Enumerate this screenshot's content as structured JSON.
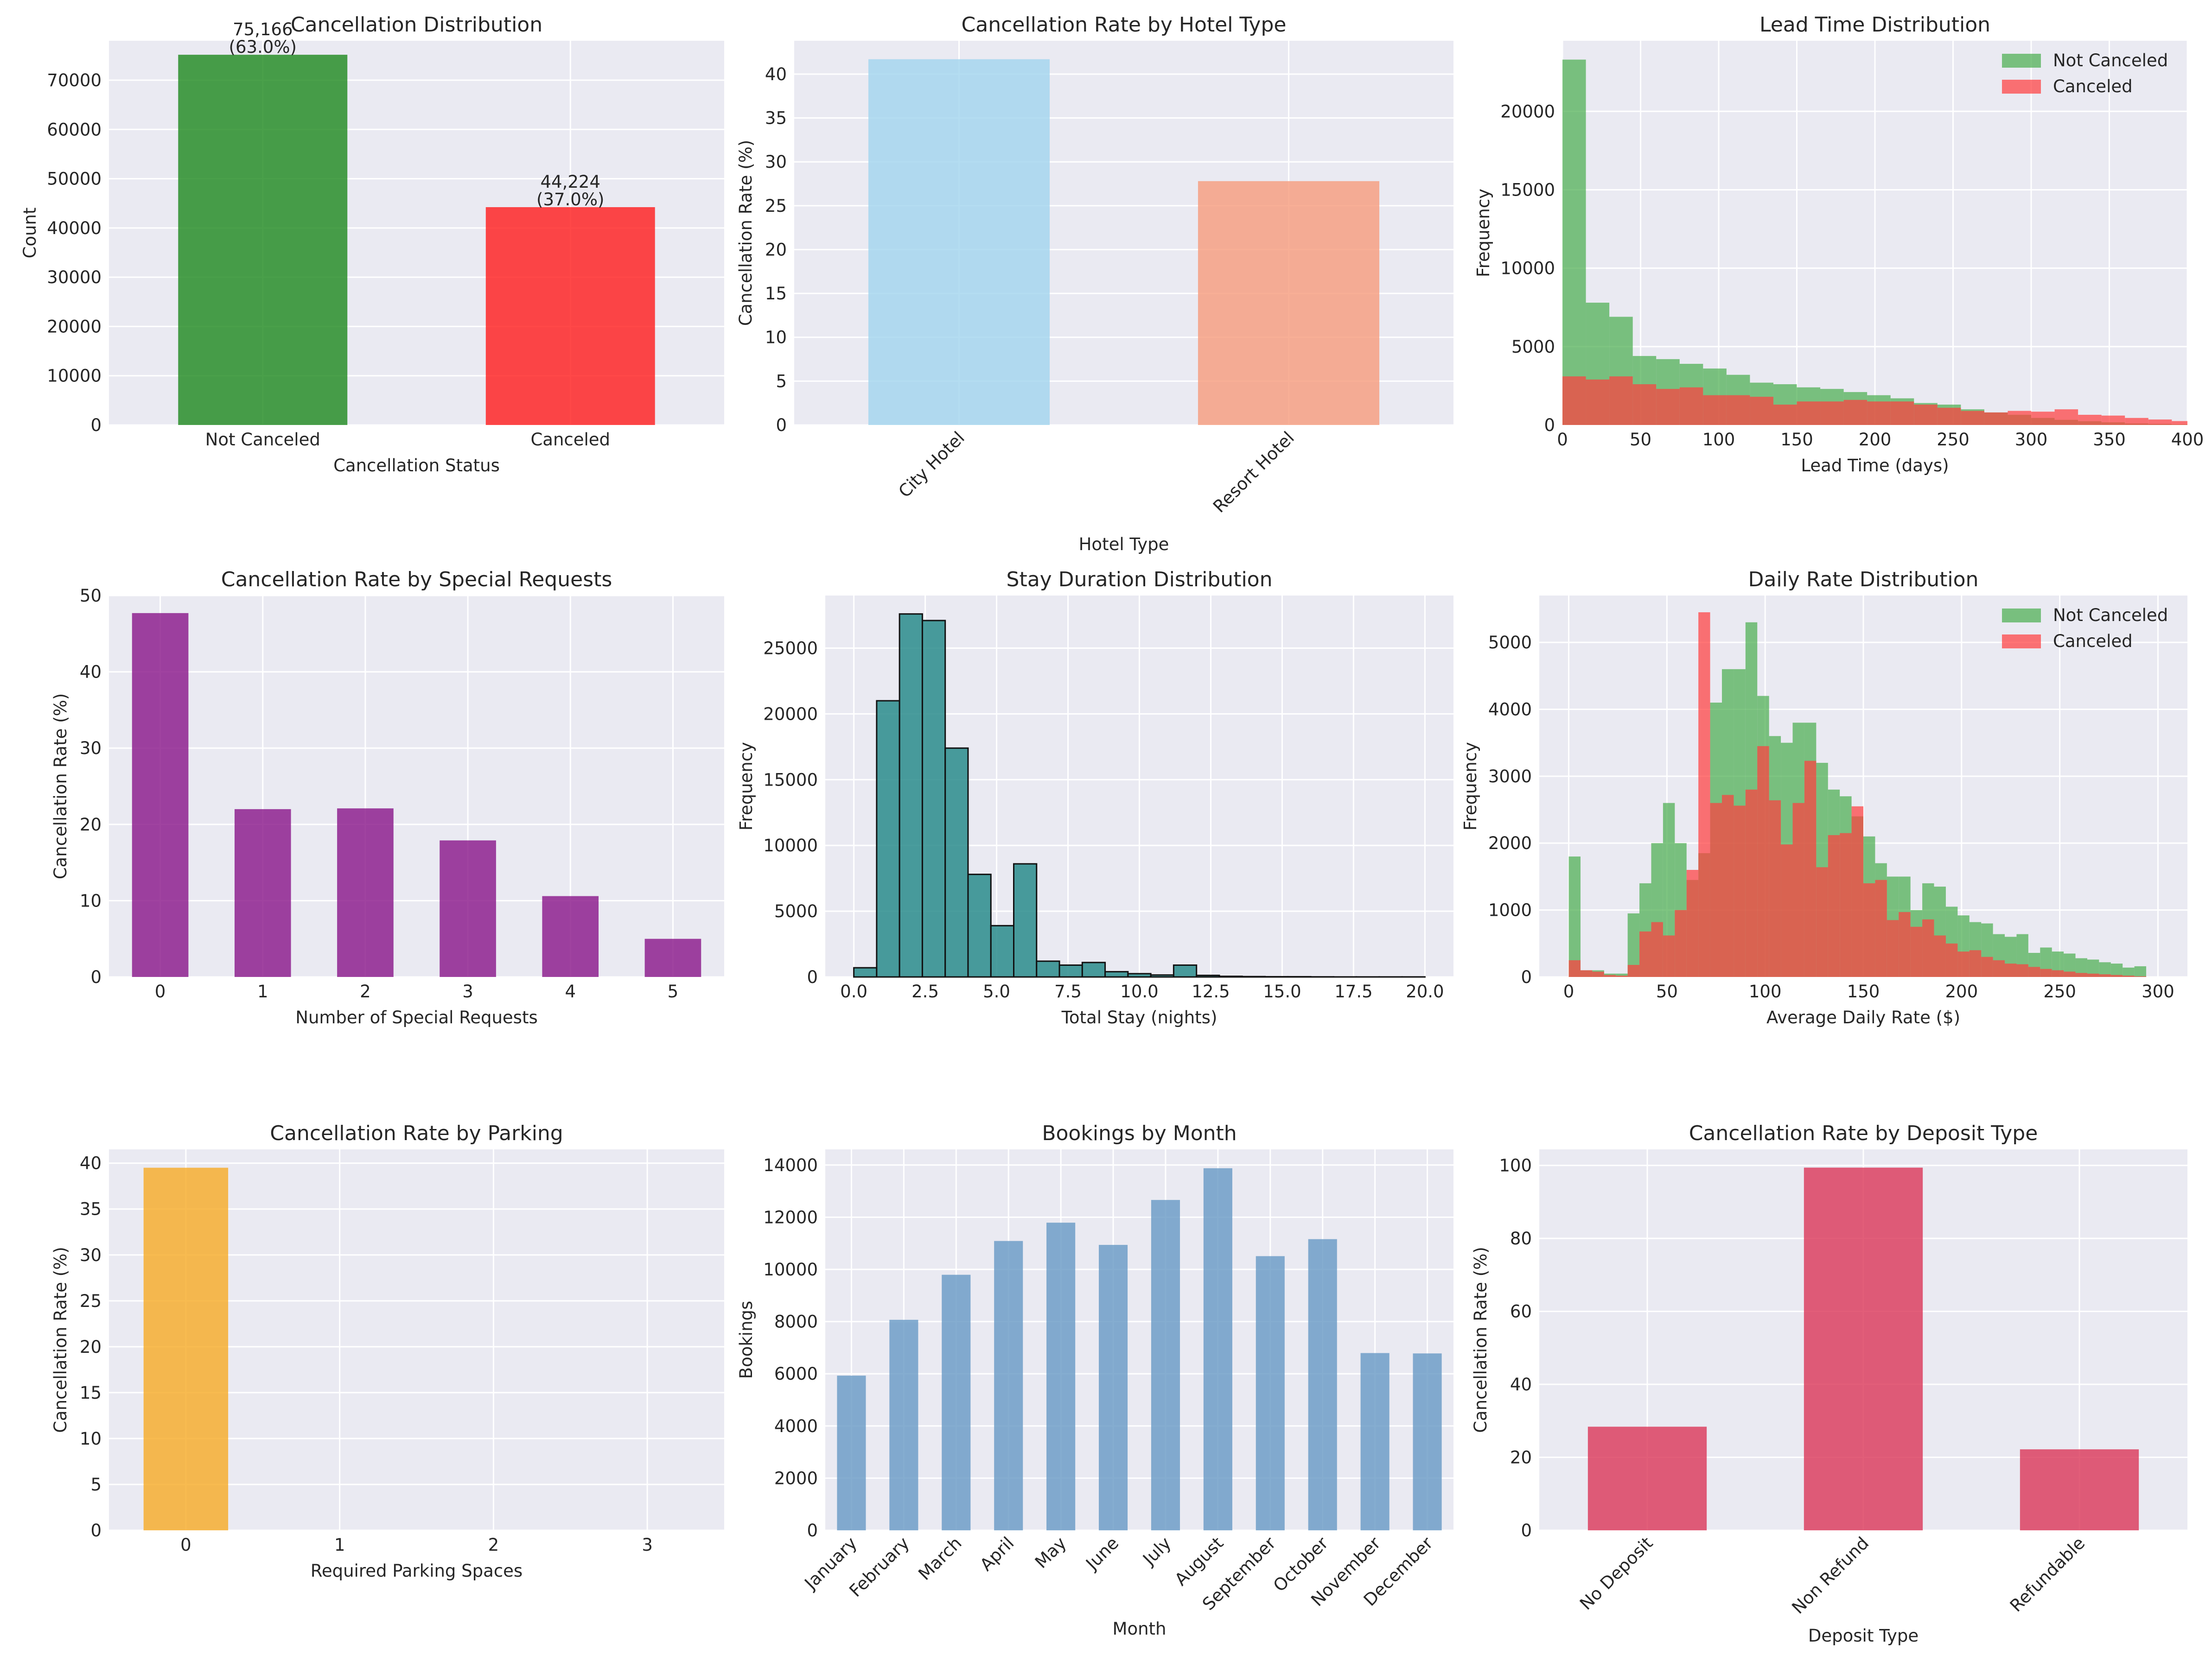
{
  "chart_data": [
    {
      "type": "bar",
      "title": "Cancellation Distribution",
      "xlabel": "Cancellation Status",
      "ylabel": "Count",
      "categories": [
        "Not Canceled",
        "Canceled"
      ],
      "values": [
        75166,
        44224
      ],
      "bar_labels": [
        [
          "75,166",
          "(63.0%)"
        ],
        [
          "44,224",
          "(37.0%)"
        ]
      ],
      "colors": [
        "#228b22",
        "#ff2020"
      ],
      "ylim": [
        0,
        78000
      ],
      "yticks": [
        0,
        10000,
        20000,
        30000,
        40000,
        50000,
        60000,
        70000
      ]
    },
    {
      "type": "bar",
      "title": "Cancellation Rate by Hotel Type",
      "xlabel": "Hotel Type",
      "ylabel": "Cancellation Rate (%)",
      "categories": [
        "City Hotel",
        "Resort Hotel"
      ],
      "values": [
        41.7,
        27.8
      ],
      "colors": [
        "#a3d5ee",
        "#f79d7f"
      ],
      "ylim": [
        0,
        43.8
      ],
      "yticks": [
        0,
        5,
        10,
        15,
        20,
        25,
        30,
        35,
        40
      ],
      "xtick_rotation": 45
    },
    {
      "type": "histogram",
      "title": "Lead Time Distribution",
      "xlabel": "Lead Time (days)",
      "ylabel": "Frequency",
      "xlim": [
        0,
        400
      ],
      "ylim": [
        0,
        24500
      ],
      "xticks": [
        0,
        50,
        100,
        150,
        200,
        250,
        300,
        350,
        400
      ],
      "yticks": [
        0,
        5000,
        10000,
        15000,
        20000
      ],
      "bin_width": 15,
      "legend_position": "top-right",
      "series": [
        {
          "name": "Not Canceled",
          "color": "#4caf50",
          "values": [
            23300,
            7800,
            6900,
            4400,
            4200,
            3900,
            3600,
            3200,
            2700,
            2600,
            2400,
            2300,
            2100,
            1900,
            1700,
            1400,
            1300,
            1000,
            800,
            650,
            450,
            330,
            240,
            170,
            100,
            70,
            40
          ]
        },
        {
          "name": "Canceled",
          "color": "#ff4040",
          "values": [
            3100,
            2900,
            3100,
            2600,
            2300,
            2400,
            1900,
            1900,
            1800,
            1300,
            1500,
            1500,
            1600,
            1500,
            1500,
            1300,
            1100,
            900,
            800,
            900,
            850,
            1000,
            650,
            600,
            450,
            350,
            250
          ]
        }
      ]
    },
    {
      "type": "bar",
      "title": "Cancellation Rate by Special Requests",
      "xlabel": "Number of Special Requests",
      "ylabel": "Cancellation Rate (%)",
      "categories": [
        "0",
        "1",
        "2",
        "3",
        "4",
        "5"
      ],
      "values": [
        47.7,
        22.0,
        22.1,
        17.9,
        10.6,
        5.0
      ],
      "colors": [
        "#8b1a8b"
      ],
      "ylim": [
        0,
        50
      ],
      "yticks": [
        0,
        10,
        20,
        30,
        40,
        50
      ]
    },
    {
      "type": "histogram",
      "title": "Stay Duration Distribution",
      "xlabel": "Total Stay (nights)",
      "ylabel": "Frequency",
      "xlim": [
        -1,
        21
      ],
      "ylim": [
        0,
        29000
      ],
      "xticks": [
        0.0,
        2.5,
        5.0,
        7.5,
        10.0,
        12.5,
        15.0,
        17.5,
        20.0
      ],
      "xtick_labels": [
        "0.0",
        "2.5",
        "5.0",
        "7.5",
        "10.0",
        "12.5",
        "15.0",
        "17.5",
        "20.0"
      ],
      "yticks": [
        0,
        5000,
        10000,
        15000,
        20000,
        25000
      ],
      "bin_width": 0.8,
      "series": [
        {
          "name": "Total Stay",
          "color": "#2a8c8c",
          "values": [
            700,
            21000,
            27600,
            27100,
            17400,
            7800,
            3900,
            8600,
            1200,
            900,
            1100,
            400,
            250,
            150,
            900,
            120,
            50,
            30,
            20,
            20,
            10,
            5,
            5,
            5,
            5
          ]
        }
      ]
    },
    {
      "type": "histogram",
      "title": "Daily Rate Distribution",
      "xlabel": "Average Daily Rate ($)",
      "ylabel": "Frequency",
      "xlim": [
        -15,
        315
      ],
      "ylim": [
        0,
        5700
      ],
      "xticks": [
        0,
        50,
        100,
        150,
        200,
        250,
        300
      ],
      "yticks": [
        0,
        1000,
        2000,
        3000,
        4000,
        5000
      ],
      "bin_width": 6,
      "legend_position": "top-right",
      "series": [
        {
          "name": "Not Canceled",
          "color": "#4caf50",
          "values": [
            1800,
            100,
            100,
            50,
            50,
            950,
            1400,
            2000,
            2600,
            2000,
            1450,
            1850,
            4100,
            4600,
            4600,
            5300,
            4200,
            3600,
            3500,
            3800,
            3800,
            3200,
            2800,
            2700,
            2400,
            2100,
            1700,
            1500,
            1500,
            1000,
            1400,
            1350,
            1050,
            920,
            820,
            800,
            640,
            600,
            640,
            360,
            440,
            380,
            350,
            280,
            260,
            220,
            200,
            140,
            160
          ]
        },
        {
          "name": "Canceled",
          "color": "#ff4040",
          "values": [
            250,
            100,
            80,
            30,
            20,
            180,
            680,
            820,
            620,
            1000,
            1600,
            5450,
            2600,
            2720,
            2560,
            2800,
            3450,
            2640,
            1980,
            2600,
            3230,
            1640,
            2120,
            2150,
            2550,
            1400,
            1450,
            850,
            970,
            750,
            860,
            620,
            500,
            380,
            400,
            300,
            250,
            200,
            190,
            150,
            120,
            100,
            80,
            60,
            50,
            40,
            30,
            20,
            10
          ]
        }
      ]
    },
    {
      "type": "bar",
      "title": "Cancellation Rate by Parking",
      "xlabel": "Required Parking Spaces",
      "ylabel": "Cancellation Rate (%)",
      "categories": [
        "0",
        "1",
        "2",
        "3"
      ],
      "values": [
        39.5,
        0,
        0,
        0
      ],
      "colors": [
        "#f6ac2a"
      ],
      "ylim": [
        0,
        41.5
      ],
      "yticks": [
        0,
        5,
        10,
        15,
        20,
        25,
        30,
        35,
        40
      ]
    },
    {
      "type": "bar",
      "title": "Bookings by Month",
      "xlabel": "Month",
      "ylabel": "Bookings",
      "categories": [
        "January",
        "February",
        "March",
        "April",
        "May",
        "June",
        "July",
        "August",
        "September",
        "October",
        "November",
        "December"
      ],
      "values": [
        5929,
        8068,
        9794,
        11089,
        11791,
        10939,
        12661,
        13877,
        10508,
        11160,
        6794,
        6780
      ],
      "colors": [
        "#6a9bc6"
      ],
      "ylim": [
        0,
        14600
      ],
      "yticks": [
        0,
        2000,
        4000,
        6000,
        8000,
        10000,
        12000,
        14000
      ],
      "xtick_rotation": 45
    },
    {
      "type": "bar",
      "title": "Cancellation Rate by Deposit Type",
      "xlabel": "Deposit Type",
      "ylabel": "Cancellation Rate (%)",
      "categories": [
        "No Deposit",
        "Non Refund",
        "Refundable"
      ],
      "values": [
        28.4,
        99.4,
        22.2
      ],
      "colors": [
        "#dc3a5c"
      ],
      "ylim": [
        0,
        104.4
      ],
      "yticks": [
        0,
        20,
        40,
        60,
        80,
        100
      ],
      "xtick_rotation": 45
    }
  ]
}
